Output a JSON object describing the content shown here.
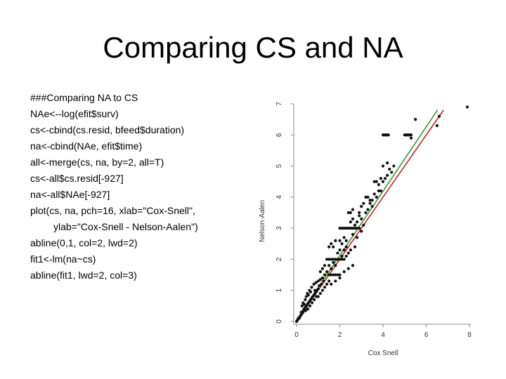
{
  "slide": {
    "title": "Comparing CS and NA"
  },
  "code_lines": [
    "###Comparing NA to CS",
    "NAe<--log(efit$surv)",
    "cs<-cbind(cs.resid, bfeed$duration)",
    "na<-cbind(NAe, efit$time)",
    "all<-merge(cs, na, by=2, all=T)",
    "cs<-all$cs.resid[-927]",
    "na<-all$NAe[-927]",
    "plot(cs, na, pch=16, xlab=\"Cox-Snell\",",
    "ylab=\"Cox-Snell - Nelson-Aalen\")",
    "abline(0,1, col=2, lwd=2)",
    "fit1<-lm(na~cs)",
    "abline(fit1, lwd=2, col=3)"
  ],
  "chart_data": {
    "type": "scatter",
    "title": "",
    "xlabel": "Cox Snell",
    "ylabel": "Nelson-Aalen",
    "xlim": [
      0,
      8
    ],
    "ylim": [
      0,
      7
    ],
    "x_ticks": [
      "0",
      "2",
      "4",
      "6",
      "8"
    ],
    "y_ticks": [
      "0",
      "1",
      "2",
      "3",
      "4",
      "5",
      "6",
      "7"
    ],
    "grid": false,
    "lines": [
      {
        "kind": "abline",
        "intercept": 0,
        "slope": 1,
        "color": "#cc2222"
      },
      {
        "kind": "fit",
        "intercept": 0.05,
        "slope": 1.035,
        "color": "#2e9a2e"
      }
    ],
    "point_color": "#111111",
    "points": [
      [
        0.0,
        0.0
      ],
      [
        0.05,
        0.05
      ],
      [
        0.08,
        0.1
      ],
      [
        0.12,
        0.1
      ],
      [
        0.15,
        0.15
      ],
      [
        0.2,
        0.2
      ],
      [
        0.22,
        0.3
      ],
      [
        0.25,
        0.25
      ],
      [
        0.3,
        0.3
      ],
      [
        0.32,
        0.35
      ],
      [
        0.35,
        0.4
      ],
      [
        0.4,
        0.45
      ],
      [
        0.42,
        0.35
      ],
      [
        0.45,
        0.5
      ],
      [
        0.5,
        0.55
      ],
      [
        0.52,
        0.4
      ],
      [
        0.55,
        0.6
      ],
      [
        0.6,
        0.65
      ],
      [
        0.62,
        0.5
      ],
      [
        0.65,
        0.7
      ],
      [
        0.7,
        0.75
      ],
      [
        0.72,
        0.6
      ],
      [
        0.75,
        0.8
      ],
      [
        0.8,
        0.85
      ],
      [
        0.82,
        0.7
      ],
      [
        0.85,
        0.9
      ],
      [
        0.9,
        0.95
      ],
      [
        0.92,
        0.8
      ],
      [
        0.95,
        1.0
      ],
      [
        1.0,
        1.05
      ],
      [
        0.25,
        0.5
      ],
      [
        0.3,
        0.6
      ],
      [
        0.35,
        0.55
      ],
      [
        0.4,
        0.7
      ],
      [
        0.45,
        0.8
      ],
      [
        0.5,
        0.9
      ],
      [
        0.55,
        0.85
      ],
      [
        0.6,
        1.0
      ],
      [
        0.65,
        0.95
      ],
      [
        0.7,
        1.1
      ],
      [
        0.8,
        1.2
      ],
      [
        0.85,
        1.0
      ],
      [
        0.9,
        1.25
      ],
      [
        1.0,
        1.3
      ],
      [
        1.05,
        1.15
      ],
      [
        1.1,
        1.35
      ],
      [
        1.15,
        1.2
      ],
      [
        1.2,
        1.4
      ],
      [
        1.25,
        1.3
      ],
      [
        1.3,
        1.5
      ],
      [
        1.0,
        0.8
      ],
      [
        1.1,
        0.9
      ],
      [
        1.2,
        1.0
      ],
      [
        1.3,
        1.1
      ],
      [
        1.4,
        1.2
      ],
      [
        1.5,
        1.3
      ],
      [
        1.1,
        1.6
      ],
      [
        1.2,
        1.7
      ],
      [
        1.3,
        1.8
      ],
      [
        1.4,
        1.6
      ],
      [
        1.5,
        1.5
      ],
      [
        1.6,
        1.5
      ],
      [
        1.7,
        1.5
      ],
      [
        1.8,
        1.5
      ],
      [
        1.9,
        1.5
      ],
      [
        2.0,
        1.5
      ],
      [
        1.5,
        1.8
      ],
      [
        1.6,
        1.7
      ],
      [
        1.7,
        1.9
      ],
      [
        1.8,
        1.8
      ],
      [
        1.4,
        2.0
      ],
      [
        1.5,
        2.0
      ],
      [
        1.6,
        2.0
      ],
      [
        1.7,
        2.0
      ],
      [
        1.8,
        2.0
      ],
      [
        1.9,
        2.0
      ],
      [
        2.0,
        2.0
      ],
      [
        2.1,
        2.0
      ],
      [
        2.2,
        2.0
      ],
      [
        1.9,
        2.2
      ],
      [
        2.0,
        2.3
      ],
      [
        2.1,
        2.1
      ],
      [
        2.2,
        2.3
      ],
      [
        2.3,
        2.4
      ],
      [
        2.4,
        2.2
      ],
      [
        2.5,
        2.3
      ],
      [
        2.0,
        2.6
      ],
      [
        2.1,
        2.5
      ],
      [
        2.2,
        2.7
      ],
      [
        2.3,
        2.6
      ],
      [
        1.5,
        2.4
      ],
      [
        1.6,
        2.5
      ],
      [
        1.7,
        2.4
      ],
      [
        1.8,
        2.6
      ],
      [
        1.6,
        1.2
      ],
      [
        1.8,
        1.3
      ],
      [
        2.0,
        1.4
      ],
      [
        2.2,
        1.6
      ],
      [
        2.4,
        1.7
      ],
      [
        2.6,
        1.8
      ],
      [
        2.0,
        3.0
      ],
      [
        2.1,
        3.0
      ],
      [
        2.2,
        3.0
      ],
      [
        2.3,
        3.0
      ],
      [
        2.4,
        3.0
      ],
      [
        2.5,
        3.0
      ],
      [
        2.6,
        3.0
      ],
      [
        2.7,
        3.0
      ],
      [
        2.8,
        3.0
      ],
      [
        2.9,
        3.0
      ],
      [
        2.5,
        3.2
      ],
      [
        2.6,
        3.3
      ],
      [
        2.7,
        3.1
      ],
      [
        2.8,
        3.2
      ],
      [
        2.9,
        3.4
      ],
      [
        3.0,
        3.3
      ],
      [
        2.6,
        2.8
      ],
      [
        2.8,
        2.7
      ],
      [
        3.0,
        2.9
      ],
      [
        3.1,
        3.1
      ],
      [
        2.4,
        3.5
      ],
      [
        2.5,
        3.5
      ],
      [
        3.2,
        3.5
      ],
      [
        3.4,
        3.8
      ],
      [
        2.3,
        2.1
      ],
      [
        2.7,
        2.4
      ],
      [
        3.3,
        3.6
      ],
      [
        3.5,
        3.7
      ],
      [
        2.9,
        3.5
      ],
      [
        3.1,
        3.8
      ],
      [
        2.6,
        3.6
      ],
      [
        3.0,
        3.7
      ],
      [
        3.2,
        4.0
      ],
      [
        3.3,
        4.0
      ],
      [
        3.4,
        3.9
      ],
      [
        3.5,
        3.9
      ],
      [
        3.6,
        4.1
      ],
      [
        3.7,
        4.0
      ],
      [
        3.8,
        4.2
      ],
      [
        3.9,
        4.2
      ],
      [
        3.7,
        4.5
      ],
      [
        3.8,
        4.4
      ],
      [
        3.9,
        4.6
      ],
      [
        4.0,
        4.5
      ],
      [
        4.1,
        4.6
      ],
      [
        3.6,
        4.5
      ],
      [
        4.2,
        4.7
      ],
      [
        4.3,
        4.9
      ],
      [
        4.4,
        4.8
      ],
      [
        4.0,
        5.0
      ],
      [
        4.5,
        5.0
      ],
      [
        4.2,
        5.1
      ],
      [
        4.0,
        6.0
      ],
      [
        4.05,
        6.0
      ],
      [
        4.1,
        6.0
      ],
      [
        4.15,
        6.0
      ],
      [
        4.2,
        6.0
      ],
      [
        4.25,
        6.0
      ],
      [
        5.0,
        6.0
      ],
      [
        5.05,
        6.0
      ],
      [
        5.1,
        6.0
      ],
      [
        5.15,
        6.0
      ],
      [
        5.2,
        6.0
      ],
      [
        5.25,
        6.0
      ],
      [
        5.3,
        6.0
      ],
      [
        5.5,
        6.5
      ],
      [
        6.5,
        6.3
      ],
      [
        7.9,
        6.9
      ],
      [
        6.6,
        6.6
      ],
      [
        5.3,
        5.9
      ]
    ]
  }
}
